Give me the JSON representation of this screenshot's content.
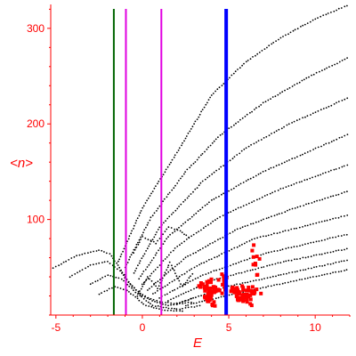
{
  "chart_data": {
    "type": "scatter",
    "title": "",
    "xlabel": "E",
    "ylabel": "<n>",
    "xlim": [
      -5.3,
      12.0
    ],
    "ylim": [
      0,
      325
    ],
    "grid": false,
    "x_ticks": [
      -5,
      0,
      5,
      10
    ],
    "y_ticks": [
      100,
      200,
      300
    ],
    "x_tick_labels": [
      "-5",
      "0",
      "5",
      "10"
    ],
    "y_tick_labels": [
      "100",
      "200",
      "300"
    ],
    "colors": {
      "axis": "#ff0000",
      "points": "#000000",
      "highlight": "#ff0000",
      "line_green": "#006400",
      "line_magenta": "#e000e0",
      "line_blue": "#0000ff"
    },
    "vertical_lines": [
      {
        "x": -1.65,
        "color": "#006400",
        "width": 2
      },
      {
        "x": -0.95,
        "color": "#e000e0",
        "width": 2
      },
      {
        "x": 1.1,
        "color": "#e000e0",
        "width": 2
      },
      {
        "x": 4.85,
        "color": "#0000ff",
        "width": 4
      }
    ],
    "series": [
      {
        "points": [
          [
            -1.4,
            56
          ],
          [
            0.0,
            112
          ],
          [
            2.0,
            170
          ],
          [
            4.0,
            230
          ],
          [
            6.0,
            265
          ],
          [
            8.0,
            290
          ],
          [
            10.0,
            310
          ],
          [
            12.0,
            325
          ]
        ]
      },
      {
        "points": [
          [
            -1.0,
            50
          ],
          [
            0.5,
            102
          ],
          [
            2.5,
            150
          ],
          [
            4.5,
            188
          ],
          [
            7.0,
            222
          ],
          [
            9.5,
            248
          ],
          [
            12.0,
            270
          ]
        ]
      },
      {
        "points": [
          [
            -0.5,
            44
          ],
          [
            1.0,
            92
          ],
          [
            3.5,
            140
          ],
          [
            6.0,
            175
          ],
          [
            8.5,
            200
          ],
          [
            12.0,
            228
          ]
        ]
      },
      {
        "points": [
          [
            -0.2,
            38
          ],
          [
            1.5,
            82
          ],
          [
            4.0,
            120
          ],
          [
            7.0,
            150
          ],
          [
            12.0,
            190
          ]
        ]
      },
      {
        "points": [
          [
            0.0,
            32
          ],
          [
            2.0,
            72
          ],
          [
            4.5,
            103
          ],
          [
            8.0,
            132
          ],
          [
            12.0,
            158
          ]
        ]
      },
      {
        "points": [
          [
            0.3,
            26
          ],
          [
            2.5,
            60
          ],
          [
            5.5,
            90
          ],
          [
            9.0,
            113
          ],
          [
            12.0,
            130
          ]
        ]
      },
      {
        "points": [
          [
            0.6,
            22
          ],
          [
            3.0,
            50
          ],
          [
            6.5,
            80
          ],
          [
            12.0,
            105
          ]
        ]
      },
      {
        "points": [
          [
            1.0,
            18
          ],
          [
            3.5,
            42
          ],
          [
            7.0,
            64
          ],
          [
            12.0,
            85
          ]
        ]
      },
      {
        "points": [
          [
            1.5,
            15
          ],
          [
            4.0,
            36
          ],
          [
            8.0,
            55
          ],
          [
            12.0,
            70
          ]
        ]
      },
      {
        "points": [
          [
            2.0,
            12
          ],
          [
            5.0,
            30
          ],
          [
            12.0,
            58
          ]
        ]
      },
      {
        "points": [
          [
            2.5,
            10
          ],
          [
            6.0,
            25
          ],
          [
            12.0,
            48
          ]
        ]
      },
      {
        "points": [
          [
            -5.3,
            48
          ],
          [
            -3.8,
            62
          ],
          [
            -2.5,
            68
          ],
          [
            -1.9,
            64
          ],
          [
            -1.4,
            52
          ],
          [
            -0.8,
            35
          ],
          [
            0.0,
            20
          ],
          [
            1.0,
            14
          ],
          [
            2.0,
            12
          ],
          [
            3.0,
            18
          ]
        ]
      },
      {
        "points": [
          [
            -4.2,
            40
          ],
          [
            -3.0,
            52
          ],
          [
            -2.0,
            56
          ],
          [
            -1.3,
            46
          ],
          [
            -0.6,
            30
          ],
          [
            0.4,
            16
          ],
          [
            1.5,
            10
          ],
          [
            3.0,
            14
          ]
        ]
      },
      {
        "points": [
          [
            -3.0,
            32
          ],
          [
            -2.0,
            42
          ],
          [
            -1.2,
            38
          ],
          [
            -0.4,
            24
          ],
          [
            0.6,
            10
          ],
          [
            2.0,
            6
          ],
          [
            3.5,
            10
          ]
        ]
      },
      {
        "points": [
          [
            -2.5,
            22
          ],
          [
            -1.6,
            30
          ],
          [
            -0.9,
            26
          ],
          [
            0.2,
            10
          ],
          [
            1.3,
            5
          ],
          [
            2.5,
            4
          ]
        ]
      },
      {
        "points": [
          [
            -0.5,
            65
          ],
          [
            0.0,
            82
          ],
          [
            0.8,
            75
          ],
          [
            1.5,
            92
          ],
          [
            2.2,
            88
          ],
          [
            2.8,
            80
          ]
        ]
      },
      {
        "points": [
          [
            -0.3,
            20
          ],
          [
            0.3,
            40
          ],
          [
            0.9,
            28
          ],
          [
            1.6,
            55
          ],
          [
            2.3,
            30
          ],
          [
            3.0,
            45
          ]
        ]
      }
    ],
    "highlight_clusters": [
      {
        "center": [
          3.9,
          25
        ],
        "spread": [
          0.5,
          12
        ],
        "count": 70
      },
      {
        "center": [
          5.9,
          22
        ],
        "spread": [
          0.75,
          9
        ],
        "count": 70
      },
      {
        "center": [
          4.7,
          38
        ],
        "spread": [
          0.2,
          8
        ],
        "count": 10
      },
      {
        "center": [
          6.6,
          50
        ],
        "spread": [
          0.25,
          30
        ],
        "count": 10
      }
    ]
  }
}
